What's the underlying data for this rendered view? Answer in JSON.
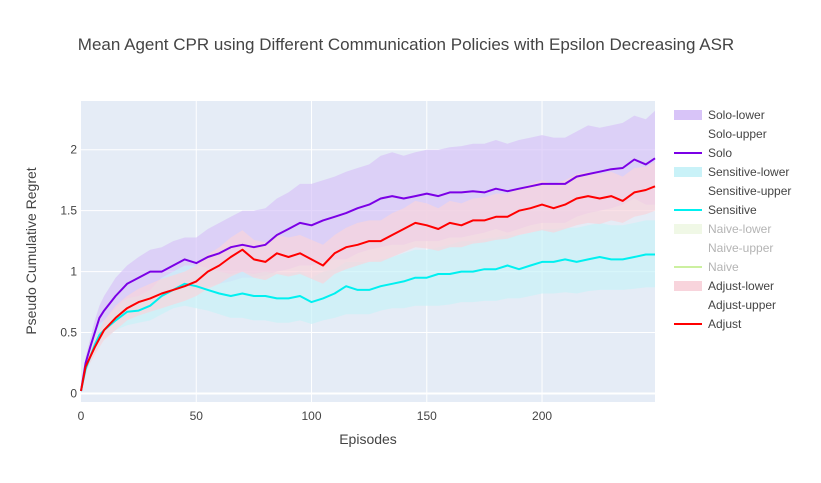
{
  "chart_data": {
    "type": "line",
    "title": "Mean Agent CPR using Different Communication Policies with Epsilon Decreasing ASR",
    "xlabel": "Episodes",
    "ylabel": "Pseudo Cumulative Regret",
    "xlim": [
      0,
      249
    ],
    "ylim": [
      -0.07,
      2.4
    ],
    "x_ticks": [
      0,
      50,
      100,
      150,
      200
    ],
    "y_ticks": [
      0,
      0.5,
      1,
      1.5,
      2
    ],
    "x_tick_labels": [
      "0",
      "50",
      "100",
      "150",
      "200"
    ],
    "y_tick_labels": [
      "0",
      "0.5",
      "1",
      "1.5",
      "2"
    ],
    "grid": true,
    "legend_position": "right",
    "plot_bgcolor": "#e5ecf6",
    "legend": [
      {
        "label": "Solo-lower",
        "kind": "fill",
        "color": "#d8c4f8",
        "muted": false
      },
      {
        "label": "Solo-upper",
        "kind": "none",
        "color": "#ffffff",
        "muted": false
      },
      {
        "label": "Solo",
        "kind": "line",
        "color": "#7b00e6",
        "muted": false
      },
      {
        "label": "Sensitive-lower",
        "kind": "fill",
        "color": "#c9f2f8",
        "muted": false
      },
      {
        "label": "Sensitive-upper",
        "kind": "none",
        "color": "#ffffff",
        "muted": false
      },
      {
        "label": "Sensitive",
        "kind": "line",
        "color": "#00f0f0",
        "muted": false
      },
      {
        "label": "Naive-lower",
        "kind": "fill",
        "color": "#f0f8e6",
        "muted": true
      },
      {
        "label": "Naive-upper",
        "kind": "none",
        "color": "#ffffff",
        "muted": true
      },
      {
        "label": "Naive",
        "kind": "line",
        "color": "#ccf0a0",
        "muted": true
      },
      {
        "label": "Adjust-lower",
        "kind": "fill",
        "color": "#f8d4dc",
        "muted": false
      },
      {
        "label": "Adjust-upper",
        "kind": "none",
        "color": "#ffffff",
        "muted": false
      },
      {
        "label": "Adjust",
        "kind": "line",
        "color": "#ff0000",
        "muted": false
      }
    ],
    "x": [
      0,
      2,
      4,
      6,
      8,
      10,
      15,
      20,
      25,
      30,
      35,
      40,
      45,
      50,
      55,
      60,
      65,
      70,
      75,
      80,
      85,
      90,
      95,
      100,
      105,
      110,
      115,
      120,
      125,
      130,
      135,
      140,
      145,
      150,
      155,
      160,
      165,
      170,
      175,
      180,
      185,
      190,
      195,
      200,
      205,
      210,
      215,
      220,
      225,
      230,
      235,
      240,
      245,
      249
    ],
    "series": [
      {
        "name": "Solo",
        "color": "#7b00e6",
        "band_color": "#d8c4f8",
        "values": [
          0.02,
          0.25,
          0.38,
          0.5,
          0.62,
          0.68,
          0.8,
          0.9,
          0.95,
          1.0,
          1.0,
          1.05,
          1.1,
          1.07,
          1.12,
          1.15,
          1.2,
          1.22,
          1.2,
          1.22,
          1.3,
          1.35,
          1.4,
          1.38,
          1.42,
          1.45,
          1.48,
          1.52,
          1.55,
          1.6,
          1.62,
          1.6,
          1.62,
          1.64,
          1.62,
          1.65,
          1.65,
          1.66,
          1.65,
          1.68,
          1.66,
          1.68,
          1.7,
          1.72,
          1.72,
          1.72,
          1.78,
          1.8,
          1.82,
          1.84,
          1.85,
          1.92,
          1.88,
          1.93
        ],
        "lower": [
          0.02,
          0.2,
          0.3,
          0.4,
          0.5,
          0.55,
          0.65,
          0.72,
          0.75,
          0.8,
          0.82,
          0.85,
          0.88,
          0.85,
          0.88,
          0.9,
          0.92,
          0.95,
          0.95,
          0.97,
          1.0,
          1.02,
          1.05,
          1.05,
          1.08,
          1.1,
          1.1,
          1.15,
          1.18,
          1.2,
          1.22,
          1.22,
          1.25,
          1.25,
          1.25,
          1.28,
          1.28,
          1.3,
          1.32,
          1.35,
          1.32,
          1.35,
          1.38,
          1.4,
          1.4,
          1.4,
          1.45,
          1.48,
          1.5,
          1.52,
          1.55,
          1.6,
          1.55,
          1.55
        ],
        "upper": [
          0.02,
          0.3,
          0.45,
          0.6,
          0.72,
          0.8,
          0.95,
          1.05,
          1.12,
          1.18,
          1.2,
          1.25,
          1.28,
          1.28,
          1.35,
          1.4,
          1.45,
          1.5,
          1.5,
          1.52,
          1.6,
          1.65,
          1.72,
          1.72,
          1.75,
          1.78,
          1.82,
          1.85,
          1.88,
          1.95,
          1.98,
          1.95,
          1.98,
          2.0,
          2.0,
          2.02,
          2.03,
          2.05,
          2.05,
          2.08,
          2.05,
          2.08,
          2.1,
          2.12,
          2.1,
          2.1,
          2.15,
          2.2,
          2.18,
          2.2,
          2.22,
          2.28,
          2.25,
          2.32
        ]
      },
      {
        "name": "Sensitive",
        "color": "#00f0f0",
        "band_color": "#c9f2f8",
        "values": [
          0.02,
          0.2,
          0.3,
          0.4,
          0.48,
          0.52,
          0.6,
          0.67,
          0.68,
          0.72,
          0.8,
          0.85,
          0.9,
          0.88,
          0.85,
          0.82,
          0.8,
          0.82,
          0.8,
          0.8,
          0.78,
          0.78,
          0.8,
          0.75,
          0.78,
          0.82,
          0.88,
          0.85,
          0.85,
          0.88,
          0.9,
          0.92,
          0.95,
          0.95,
          0.98,
          0.98,
          1.0,
          1.0,
          1.02,
          1.02,
          1.05,
          1.02,
          1.05,
          1.08,
          1.08,
          1.1,
          1.08,
          1.1,
          1.12,
          1.1,
          1.1,
          1.12,
          1.14,
          1.14
        ],
        "lower": [
          0.02,
          0.15,
          0.25,
          0.32,
          0.4,
          0.45,
          0.52,
          0.56,
          0.58,
          0.6,
          0.65,
          0.7,
          0.72,
          0.7,
          0.68,
          0.65,
          0.62,
          0.62,
          0.6,
          0.6,
          0.58,
          0.58,
          0.6,
          0.57,
          0.6,
          0.62,
          0.65,
          0.65,
          0.65,
          0.68,
          0.7,
          0.7,
          0.72,
          0.72,
          0.72,
          0.73,
          0.75,
          0.75,
          0.76,
          0.76,
          0.78,
          0.78,
          0.8,
          0.82,
          0.82,
          0.83,
          0.82,
          0.84,
          0.85,
          0.85,
          0.85,
          0.86,
          0.87,
          0.87
        ],
        "upper": [
          0.02,
          0.26,
          0.37,
          0.48,
          0.57,
          0.6,
          0.7,
          0.78,
          0.8,
          0.85,
          0.95,
          1.0,
          1.05,
          1.05,
          1.03,
          1.0,
          0.98,
          1.0,
          0.98,
          1.0,
          0.98,
          0.98,
          1.0,
          0.95,
          1.0,
          1.02,
          1.08,
          1.08,
          1.08,
          1.1,
          1.12,
          1.15,
          1.18,
          1.18,
          1.2,
          1.22,
          1.25,
          1.25,
          1.27,
          1.28,
          1.3,
          1.3,
          1.32,
          1.35,
          1.35,
          1.36,
          1.36,
          1.38,
          1.4,
          1.38,
          1.38,
          1.4,
          1.42,
          1.42
        ]
      },
      {
        "name": "Adjust",
        "color": "#ff0000",
        "band_color": "#f8d4dc",
        "values": [
          0.02,
          0.22,
          0.3,
          0.38,
          0.45,
          0.52,
          0.62,
          0.7,
          0.75,
          0.78,
          0.82,
          0.85,
          0.88,
          0.92,
          1.0,
          1.05,
          1.12,
          1.18,
          1.1,
          1.08,
          1.15,
          1.12,
          1.15,
          1.1,
          1.05,
          1.15,
          1.2,
          1.22,
          1.25,
          1.25,
          1.3,
          1.35,
          1.4,
          1.38,
          1.35,
          1.4,
          1.38,
          1.42,
          1.42,
          1.45,
          1.45,
          1.5,
          1.52,
          1.55,
          1.52,
          1.55,
          1.6,
          1.62,
          1.6,
          1.62,
          1.58,
          1.65,
          1.67,
          1.7
        ],
        "lower": [
          0.02,
          0.18,
          0.25,
          0.32,
          0.38,
          0.44,
          0.52,
          0.6,
          0.64,
          0.67,
          0.7,
          0.73,
          0.76,
          0.8,
          0.86,
          0.9,
          0.96,
          1.0,
          0.95,
          0.93,
          0.98,
          0.96,
          0.98,
          0.94,
          0.9,
          0.98,
          1.02,
          1.05,
          1.08,
          1.08,
          1.12,
          1.16,
          1.2,
          1.19,
          1.17,
          1.2,
          1.2,
          1.23,
          1.24,
          1.26,
          1.27,
          1.3,
          1.32,
          1.34,
          1.32,
          1.35,
          1.38,
          1.4,
          1.39,
          1.42,
          1.4,
          1.45,
          1.47,
          1.5
        ],
        "upper": [
          0.02,
          0.26,
          0.36,
          0.45,
          0.52,
          0.6,
          0.72,
          0.8,
          0.86,
          0.9,
          0.94,
          0.97,
          1.0,
          1.05,
          1.14,
          1.2,
          1.28,
          1.34,
          1.26,
          1.24,
          1.3,
          1.28,
          1.3,
          1.26,
          1.22,
          1.3,
          1.36,
          1.4,
          1.42,
          1.42,
          1.48,
          1.52,
          1.58,
          1.56,
          1.52,
          1.58,
          1.56,
          1.6,
          1.61,
          1.64,
          1.64,
          1.68,
          1.72,
          1.75,
          1.72,
          1.75,
          1.8,
          1.82,
          1.8,
          1.82,
          1.78,
          1.85,
          1.86,
          1.9
        ]
      }
    ]
  }
}
